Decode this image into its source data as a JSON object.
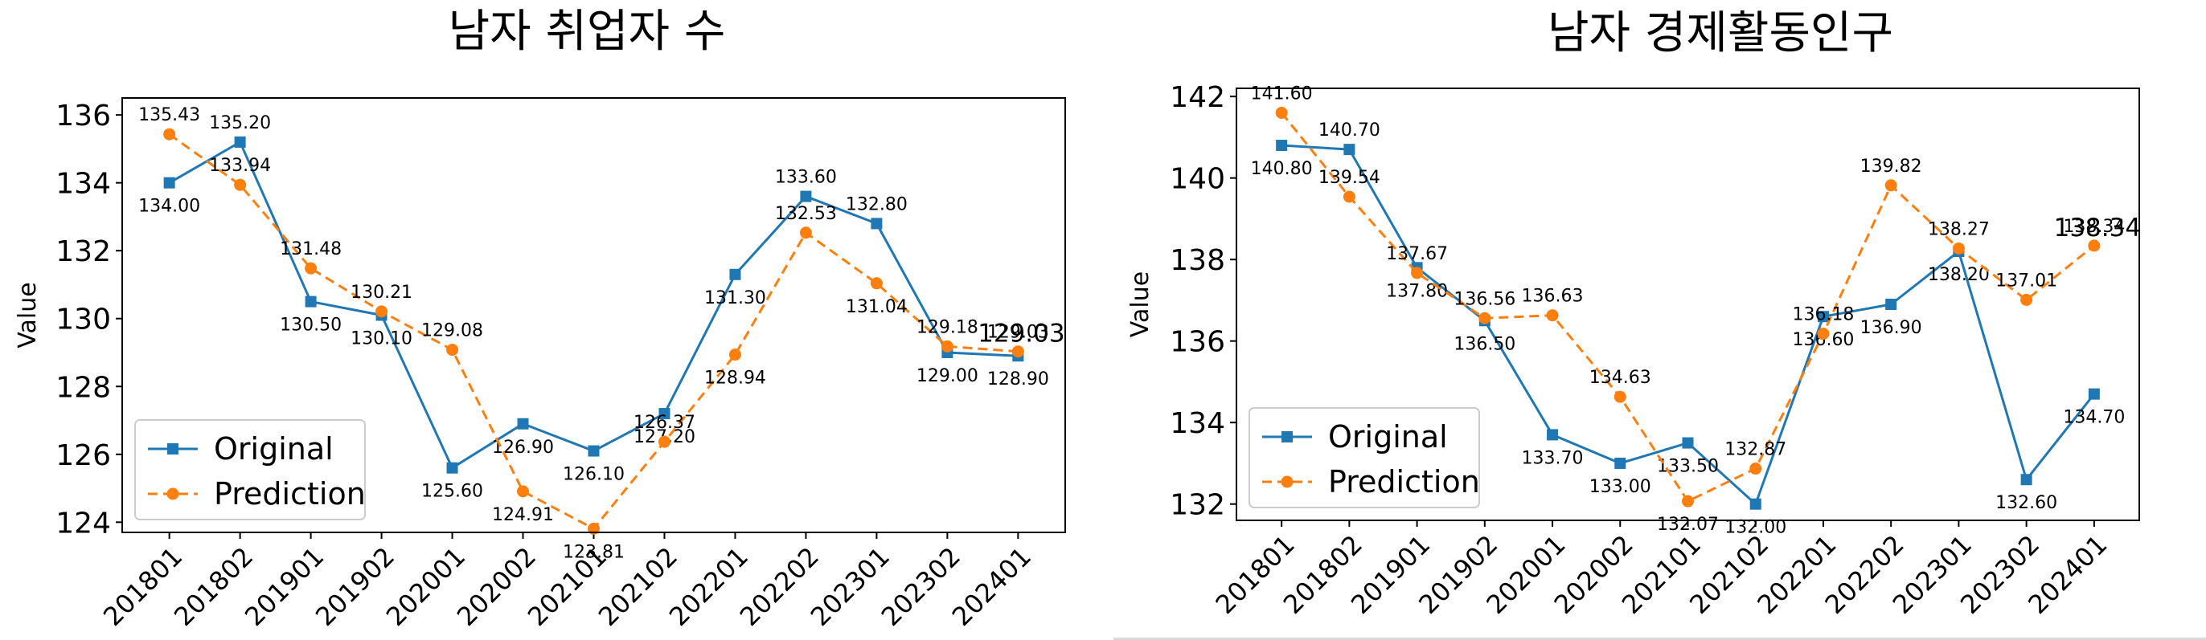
{
  "chart_data": [
    {
      "type": "line",
      "title": "남자 취업자 수",
      "xlabel": "",
      "ylabel": "Value",
      "categories": [
        "201801",
        "201802",
        "201901",
        "201902",
        "202001",
        "202002",
        "202101",
        "202102",
        "202201",
        "202202",
        "202301",
        "202302",
        "202401"
      ],
      "ylim": [
        123.7,
        136.5
      ],
      "yticks": [
        "124",
        "126",
        "128",
        "130",
        "132",
        "134",
        "136"
      ],
      "grid": false,
      "legend_position": "lower-left",
      "series": [
        {
          "name": "Original",
          "style": "solid-square",
          "color": "#1f77b4",
          "values": [
            134.0,
            135.2,
            130.5,
            130.1,
            125.6,
            126.9,
            126.1,
            127.2,
            131.3,
            133.6,
            132.8,
            129.0,
            128.9
          ],
          "labels": [
            "134.00",
            "135.20",
            "130.50",
            "130.10",
            "125.60",
            "126.90",
            "126.10",
            "127.20",
            "131.30",
            "133.60",
            "132.80",
            "129.00",
            "128.90"
          ]
        },
        {
          "name": "Prediction",
          "style": "dashed-circle",
          "color": "#ff7f0e",
          "values": [
            135.43,
            133.94,
            131.48,
            130.21,
            129.08,
            124.91,
            123.81,
            126.37,
            128.94,
            132.53,
            131.04,
            129.18,
            129.03
          ],
          "labels": [
            "135.43",
            "133.94",
            "131.48",
            "130.21",
            "129.08",
            "124.91",
            "123.81",
            "126.37",
            "128.94",
            "132.53",
            "131.04",
            "129.18",
            "129.03"
          ]
        }
      ],
      "end_annotation": "129.03"
    },
    {
      "type": "line",
      "title": "남자 경제활동인구",
      "xlabel": "",
      "ylabel": "Value",
      "categories": [
        "201801",
        "201802",
        "201901",
        "201902",
        "202001",
        "202002",
        "202101",
        "202102",
        "202201",
        "202202",
        "202301",
        "202302",
        "202401"
      ],
      "ylim": [
        131.6,
        142.2
      ],
      "yticks": [
        "132",
        "134",
        "136",
        "138",
        "140",
        "142"
      ],
      "grid": false,
      "legend_position": "lower-left",
      "series": [
        {
          "name": "Original",
          "style": "solid-square",
          "color": "#1f77b4",
          "values": [
            140.8,
            140.7,
            137.8,
            136.5,
            133.7,
            133.0,
            133.5,
            132.0,
            136.6,
            136.9,
            138.2,
            132.6,
            134.7
          ],
          "labels": [
            "140.80",
            "140.70",
            "137.80",
            "136.50",
            "133.70",
            "133.00",
            "133.50",
            "132.00",
            "136.60",
            "136.90",
            "138.20",
            "132.60",
            "134.70"
          ]
        },
        {
          "name": "Prediction",
          "style": "dashed-circle",
          "color": "#ff7f0e",
          "values": [
            141.6,
            139.54,
            137.67,
            136.56,
            136.63,
            134.63,
            132.07,
            132.87,
            136.18,
            139.82,
            138.27,
            137.01,
            138.34
          ],
          "labels": [
            "141.60",
            "139.54",
            "137.67",
            "136.56",
            "136.63",
            "134.63",
            "132.07",
            "132.87",
            "136.18",
            "139.82",
            "138.27",
            "137.01",
            "138.34"
          ]
        }
      ],
      "end_annotation": "138.34"
    }
  ]
}
